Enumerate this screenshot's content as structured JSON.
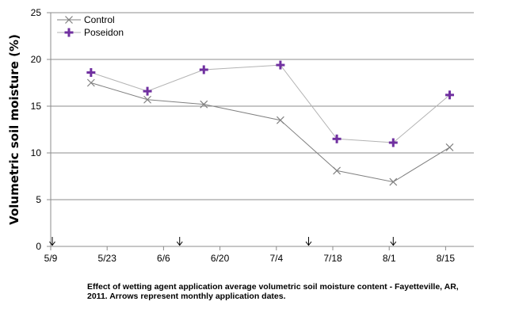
{
  "chart_data": {
    "type": "line",
    "title": "",
    "xlabel": "",
    "ylabel": "Volumetric soil moisture (%)",
    "ylim": [
      0,
      25
    ],
    "xlim": [
      "5/9",
      "8/22"
    ],
    "y_ticks": [
      0,
      5,
      10,
      15,
      20,
      25
    ],
    "x_ticks": [
      "5/9",
      "5/23",
      "6/6",
      "6/20",
      "7/4",
      "7/18",
      "8/1",
      "8/15"
    ],
    "grid": "horizontal",
    "legend_position": "top-left",
    "series": [
      {
        "name": "Control",
        "marker": "x",
        "color": "#808080",
        "x": [
          "5/19",
          "6/2",
          "6/16",
          "7/5",
          "7/19",
          "8/2",
          "8/16"
        ],
        "y": [
          17.5,
          15.7,
          15.2,
          13.5,
          8.1,
          6.9,
          10.6
        ]
      },
      {
        "name": "Poseidon",
        "marker": "plus",
        "color": "#7030a0",
        "x": [
          "5/19",
          "6/2",
          "6/16",
          "7/5",
          "7/19",
          "8/2",
          "8/16"
        ],
        "y": [
          18.6,
          16.6,
          18.9,
          19.4,
          11.5,
          11.1,
          16.2
        ]
      }
    ],
    "application_dates": [
      "5/9",
      "6/10",
      "7/12",
      "8/2"
    ],
    "caption": "Effect of wetting agent application average volumetric soil moisture content - Fayetteville, AR,\n2011.  Arrows represent monthly application dates."
  }
}
